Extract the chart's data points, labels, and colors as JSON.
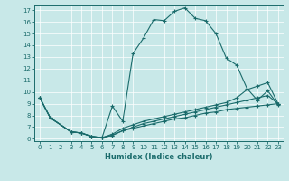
{
  "xlabel": "Humidex (Indice chaleur)",
  "bg_color": "#c8e8e8",
  "line_color": "#1a6b6b",
  "xlim": [
    -0.5,
    23.5
  ],
  "ylim": [
    5.8,
    17.4
  ],
  "yticks": [
    6,
    7,
    8,
    9,
    10,
    11,
    12,
    13,
    14,
    15,
    16,
    17
  ],
  "xticks": [
    0,
    1,
    2,
    3,
    4,
    5,
    6,
    7,
    8,
    9,
    10,
    11,
    12,
    13,
    14,
    15,
    16,
    17,
    18,
    19,
    20,
    21,
    22,
    23
  ],
  "lines": [
    {
      "x": [
        0,
        1,
        3,
        4,
        5,
        6,
        7,
        8,
        9,
        10,
        11,
        12,
        13,
        14,
        15,
        16,
        17,
        18,
        19,
        20,
        21,
        22,
        23
      ],
      "y": [
        9.5,
        7.8,
        6.6,
        6.5,
        6.2,
        6.1,
        8.8,
        7.5,
        13.3,
        14.6,
        16.2,
        16.1,
        16.9,
        17.2,
        16.3,
        16.1,
        15.0,
        12.9,
        12.3,
        10.3,
        9.3,
        10.1,
        8.9
      ]
    },
    {
      "x": [
        0,
        1,
        3,
        4,
        5,
        6,
        7,
        8,
        9,
        10,
        11,
        12,
        13,
        14,
        15,
        16,
        17,
        18,
        19,
        20,
        21,
        22,
        23
      ],
      "y": [
        9.5,
        7.8,
        6.6,
        6.5,
        6.2,
        6.1,
        6.4,
        6.9,
        7.2,
        7.5,
        7.7,
        7.9,
        8.1,
        8.3,
        8.5,
        8.7,
        8.9,
        9.1,
        9.5,
        10.2,
        10.5,
        10.8,
        9.0
      ]
    },
    {
      "x": [
        0,
        1,
        3,
        4,
        5,
        6,
        7,
        8,
        9,
        10,
        11,
        12,
        13,
        14,
        15,
        16,
        17,
        18,
        19,
        20,
        21,
        22,
        23
      ],
      "y": [
        9.5,
        7.8,
        6.6,
        6.5,
        6.2,
        6.1,
        6.3,
        6.7,
        7.0,
        7.3,
        7.5,
        7.7,
        7.9,
        8.1,
        8.3,
        8.5,
        8.7,
        8.9,
        9.1,
        9.3,
        9.5,
        9.7,
        9.0
      ]
    },
    {
      "x": [
        0,
        1,
        3,
        4,
        5,
        6,
        7,
        8,
        9,
        10,
        11,
        12,
        13,
        14,
        15,
        16,
        17,
        18,
        19,
        20,
        21,
        22,
        23
      ],
      "y": [
        9.5,
        7.8,
        6.6,
        6.5,
        6.2,
        6.1,
        6.3,
        6.7,
        6.9,
        7.1,
        7.3,
        7.5,
        7.7,
        7.8,
        8.0,
        8.2,
        8.3,
        8.5,
        8.6,
        8.7,
        8.8,
        8.9,
        9.0
      ]
    }
  ]
}
